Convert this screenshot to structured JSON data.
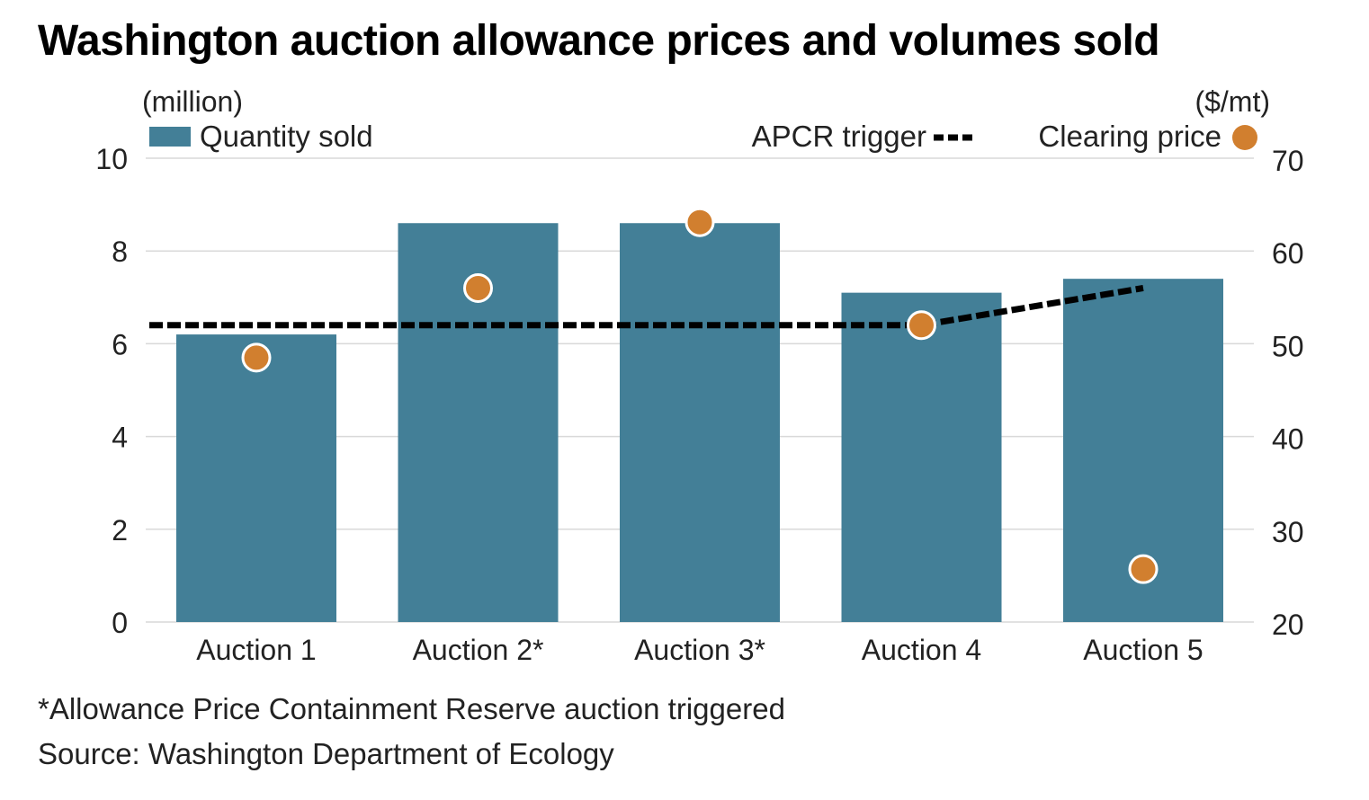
{
  "chart_data": {
    "type": "bar",
    "title": "Washington auction allowance prices and volumes sold",
    "categories": [
      "Auction 1",
      "Auction 2*",
      "Auction 3*",
      "Auction 4",
      "Auction 5"
    ],
    "series": [
      {
        "name": "Quantity sold",
        "type": "bar",
        "axis": "left",
        "color": "#437f97",
        "values": [
          6.2,
          8.6,
          8.6,
          7.1,
          7.4
        ]
      },
      {
        "name": "Clearing price",
        "type": "scatter",
        "axis": "right",
        "color": "#d17f2f",
        "values": [
          48.5,
          56.0,
          63.1,
          52.0,
          25.7
        ]
      },
      {
        "name": "APCR trigger",
        "type": "line",
        "style": "dashed",
        "axis": "right",
        "color": "#000000",
        "values": [
          52.0,
          52.0,
          52.0,
          52.0,
          56.0
        ]
      }
    ],
    "left_axis": {
      "unit_label": "(million)",
      "range": [
        0,
        10
      ],
      "ticks": [
        0,
        2,
        4,
        6,
        8,
        10
      ]
    },
    "right_axis": {
      "unit_label": "($/mt)",
      "range": [
        20,
        70
      ],
      "ticks": [
        20,
        30,
        40,
        50,
        60,
        70
      ]
    },
    "grid": true,
    "legend": {
      "position": "top",
      "entries": [
        "Quantity sold",
        "APCR trigger",
        "Clearing price"
      ]
    },
    "xlabel": "",
    "ylabel_left": "(million)",
    "ylabel_right": "($/mt)"
  },
  "footnote": "*Allowance Price Containment Reserve auction triggered",
  "source": "Source: Washington Department of Ecology"
}
